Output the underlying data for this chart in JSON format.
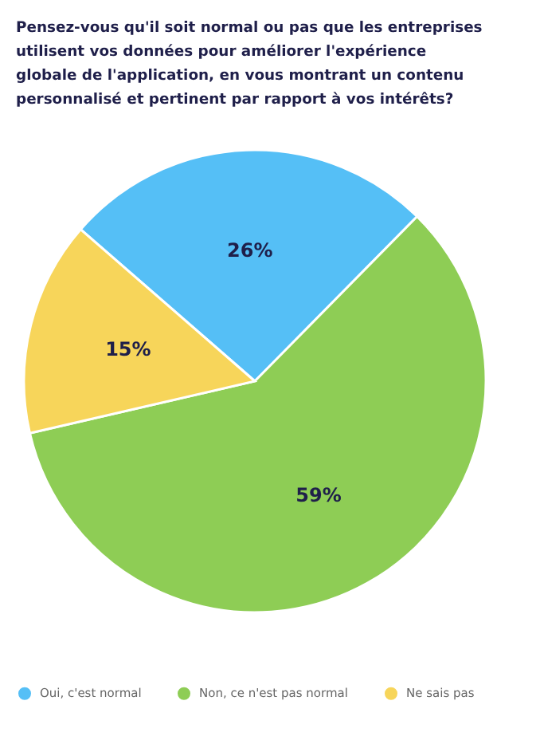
{
  "chart_data": {
    "type": "pie",
    "title": "Pensez-vous qu'il soit normal ou pas que les entreprises utilisent vos données pour améliorer l'expérience globale de l'application, en vous montrant un contenu personnalisé et pertinent par rapport à vos intérêts?",
    "categories": [
      "Oui, c'est normal",
      "Non, ce n'est pas normal",
      "Ne sais pas"
    ],
    "values": [
      26,
      59,
      15
    ],
    "colors": [
      "#55bff6",
      "#8ecd55",
      "#f7d55a"
    ],
    "value_labels": [
      "26%",
      "59%",
      "15%"
    ],
    "legend": "bottom"
  }
}
